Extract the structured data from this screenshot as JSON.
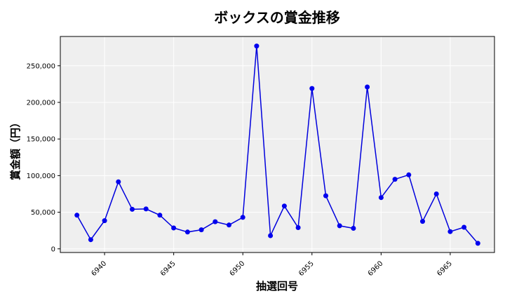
{
  "chart_data": {
    "type": "line",
    "title": "ボックスの賞金推移",
    "xlabel": "抽選回号",
    "ylabel": "賞金額（円）",
    "xlim": [
      6936.8,
      6968.2
    ],
    "ylim": [
      -5000,
      290000
    ],
    "x_ticks": [
      6940,
      6945,
      6950,
      6955,
      6960,
      6965
    ],
    "x_tick_labels": [
      "6940",
      "6945",
      "6950",
      "6955",
      "6960",
      "6965"
    ],
    "y_ticks": [
      0,
      50000,
      100000,
      150000,
      200000,
      250000
    ],
    "y_tick_labels": [
      "0",
      "50,000",
      "100,000",
      "150,000",
      "200,000",
      "250,000"
    ],
    "grid": true,
    "colors": {
      "line": "#0000dd",
      "marker": "#0000ee",
      "plot_bg": "#efefef",
      "grid": "#ffffff"
    },
    "series": [
      {
        "x": [
          6938,
          6939,
          6940,
          6941,
          6942,
          6943,
          6944,
          6945,
          6946,
          6947,
          6948,
          6949,
          6950,
          6951,
          6952,
          6953,
          6954,
          6955,
          6956,
          6957,
          6958,
          6959,
          6960,
          6961,
          6962,
          6963,
          6964,
          6965,
          6966,
          6967
        ],
        "values": [
          46000,
          12500,
          38500,
          91500,
          54000,
          54500,
          46000,
          28500,
          23000,
          26000,
          37000,
          32500,
          43000,
          277000,
          18000,
          58500,
          29000,
          219000,
          72500,
          31500,
          28000,
          221000,
          70000,
          95000,
          101000,
          37500,
          75000,
          23500,
          29500,
          7500
        ]
      }
    ]
  }
}
